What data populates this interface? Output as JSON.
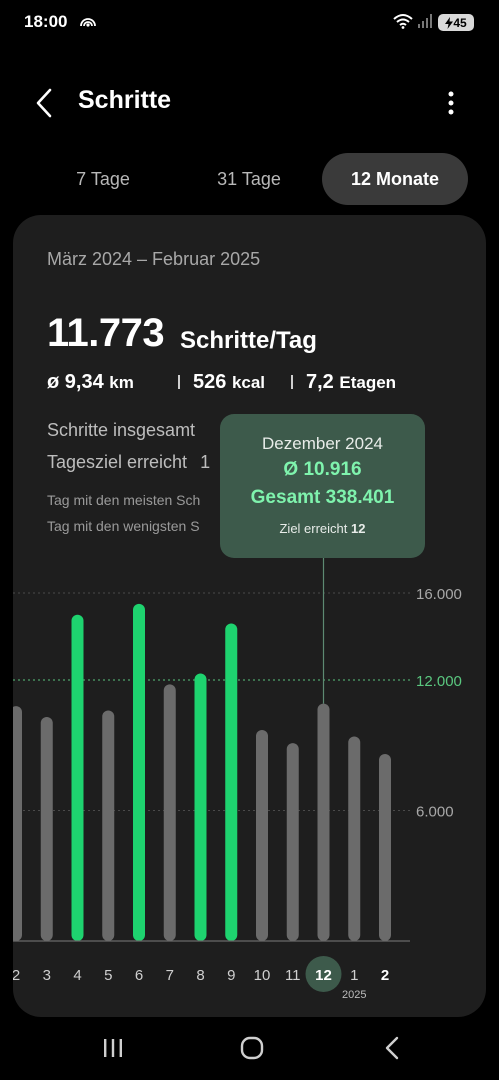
{
  "status": {
    "time": "18:00",
    "battery": "45"
  },
  "header": {
    "title": "Schritte"
  },
  "tabs": [
    {
      "label": "7 Tage",
      "active": false
    },
    {
      "label": "31 Tage",
      "active": false
    },
    {
      "label": "12 Monate",
      "active": true
    }
  ],
  "summary": {
    "period": "März 2024 – Februar 2025",
    "avg_steps": "11.773",
    "avg_unit": "Schritte/Tag",
    "distance_value": "ø 9,34",
    "distance_unit": "km",
    "energy_value": "526",
    "energy_unit": "kcal",
    "floors_value": "7,2",
    "floors_unit": "Etagen",
    "total_label": "Schritte insgesamt",
    "goal_label": "Tagesziel erreicht",
    "goal_label_value": "1",
    "most_label": "Tag mit den meisten Sch",
    "least_label": "Tag mit den wenigsten S"
  },
  "tooltip": {
    "month": "Dezember 2024",
    "avg": "Ø 10.916",
    "total": "Gesamt 338.401",
    "goal_label": "Ziel erreicht",
    "goal_value": "12"
  },
  "chart_data": {
    "type": "bar",
    "categories": [
      "2",
      "3",
      "4",
      "5",
      "6",
      "7",
      "8",
      "9",
      "10",
      "11",
      "12",
      "1",
      "2"
    ],
    "year_label": "2025",
    "year_label_index": 11,
    "values": [
      10800,
      10300,
      15000,
      10600,
      15500,
      11800,
      12300,
      14600,
      9700,
      9100,
      10916,
      9400,
      8600
    ],
    "goal_met": [
      false,
      false,
      true,
      false,
      true,
      false,
      true,
      true,
      false,
      false,
      false,
      false,
      false
    ],
    "selected_index": 10,
    "bold_index": 12,
    "ylim": [
      0,
      16000
    ],
    "yticks": [
      {
        "value": 16000,
        "label": "16.000"
      },
      {
        "value": 12000,
        "label": "12.000",
        "goal": true
      },
      {
        "value": 6000,
        "label": "6.000"
      }
    ],
    "colors": {
      "goal_met": "#1ed36f",
      "below_goal": "#6b6b6b",
      "goal_line": "#5ac77f",
      "selected_highlight": "#3d5a4b",
      "grid": "#4a4a4a"
    }
  }
}
